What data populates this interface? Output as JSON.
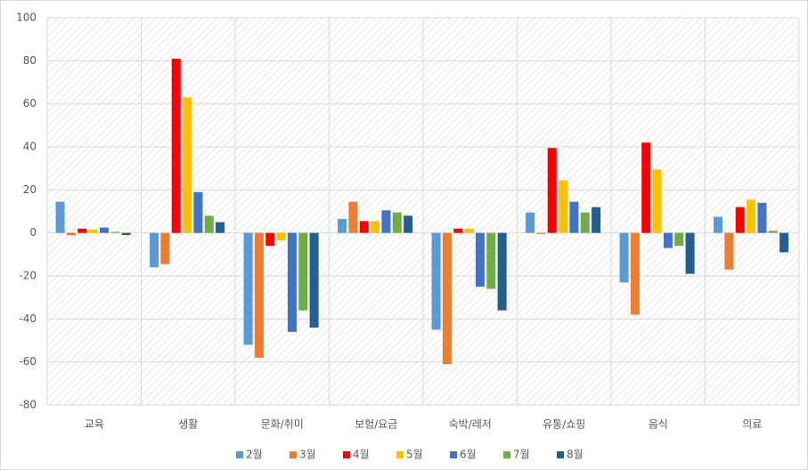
{
  "chart_data": {
    "type": "bar",
    "categories": [
      "교육",
      "생활",
      "문화/취미",
      "보험/요금",
      "숙박/레저",
      "유통/쇼핑",
      "음식",
      "의료"
    ],
    "series": [
      {
        "name": "2월",
        "color": "#5b9bd5",
        "values": [
          14.5,
          -16,
          -52,
          6.5,
          -45,
          9.5,
          -23,
          7.5
        ]
      },
      {
        "name": "3월",
        "color": "#ed7d31",
        "values": [
          -1,
          -14.5,
          -58,
          14.5,
          -61,
          -0.5,
          -38,
          -17
        ]
      },
      {
        "name": "4월",
        "color": "#ff0000",
        "values": [
          2,
          81,
          -6,
          5.5,
          2,
          39.5,
          42,
          12
        ]
      },
      {
        "name": "5월",
        "color": "#ffc000",
        "values": [
          1.5,
          63,
          -3.5,
          5.5,
          2,
          24.5,
          29.5,
          15.5
        ]
      },
      {
        "name": "6월",
        "color": "#4472c4",
        "values": [
          2.5,
          19,
          -46,
          10.5,
          -25,
          14.5,
          -7,
          14
        ]
      },
      {
        "name": "7월",
        "color": "#70ad47",
        "values": [
          0.5,
          8,
          -36,
          9.5,
          -26,
          9.5,
          -6,
          1
        ]
      },
      {
        "name": "8월",
        "color": "#255e91",
        "values": [
          -1,
          5,
          -44,
          8,
          -36,
          12,
          -19,
          -9
        ]
      }
    ],
    "ylim": [
      -80,
      100
    ],
    "yticks": [
      -80,
      -60,
      -40,
      -20,
      0,
      20,
      40,
      60,
      80,
      100
    ],
    "grid": true,
    "legend": "bottom"
  }
}
